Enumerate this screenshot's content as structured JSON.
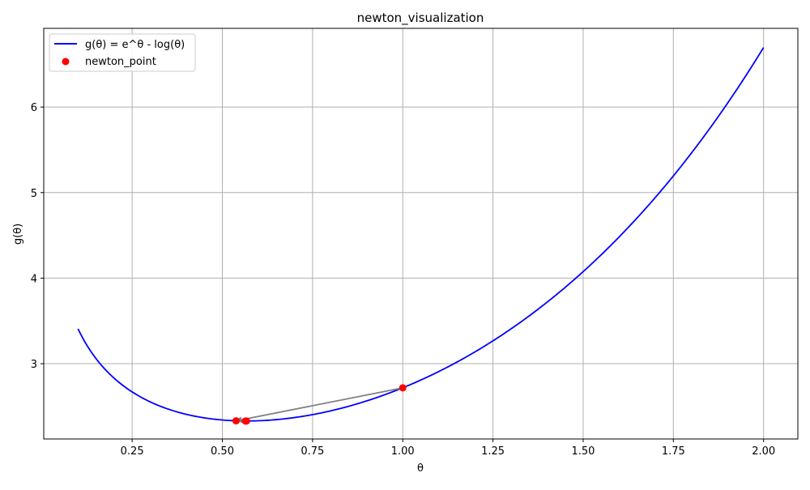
{
  "chart_data": {
    "type": "line",
    "title": "newton_visualization",
    "xlabel": "θ",
    "ylabel": "g(θ)",
    "xlim": [
      0.005,
      2.095
    ],
    "ylim": [
      2.12,
      6.92
    ],
    "x_ticks": [
      0.25,
      0.5,
      0.75,
      1.0,
      1.25,
      1.5,
      1.75,
      2.0
    ],
    "x_tick_labels": [
      "0.25",
      "0.50",
      "0.75",
      "1.00",
      "1.25",
      "1.50",
      "1.75",
      "2.00"
    ],
    "y_ticks": [
      3,
      4,
      5,
      6
    ],
    "y_tick_labels": [
      "3",
      "4",
      "5",
      "6"
    ],
    "grid": true,
    "legend_position": "top-left",
    "series": [
      {
        "name": "g(θ) = e^θ - log(θ)",
        "kind": "line",
        "color": "#0000ff",
        "function": "exp(x) - log(x)",
        "x_range": [
          0.1,
          2.0
        ]
      },
      {
        "name": "newton_point",
        "kind": "scatter",
        "color": "#ff0000",
        "points": [
          {
            "x": 1.0,
            "y": 2.718
          },
          {
            "x": 0.538,
            "y": 2.332
          },
          {
            "x": 0.564,
            "y": 2.33
          },
          {
            "x": 0.567,
            "y": 2.33
          }
        ]
      }
    ],
    "annotations": [
      {
        "kind": "arrow",
        "color": "#808080",
        "from": {
          "x": 1.0,
          "y": 2.718
        },
        "to": {
          "x": 0.538,
          "y": 2.332
        }
      }
    ]
  }
}
